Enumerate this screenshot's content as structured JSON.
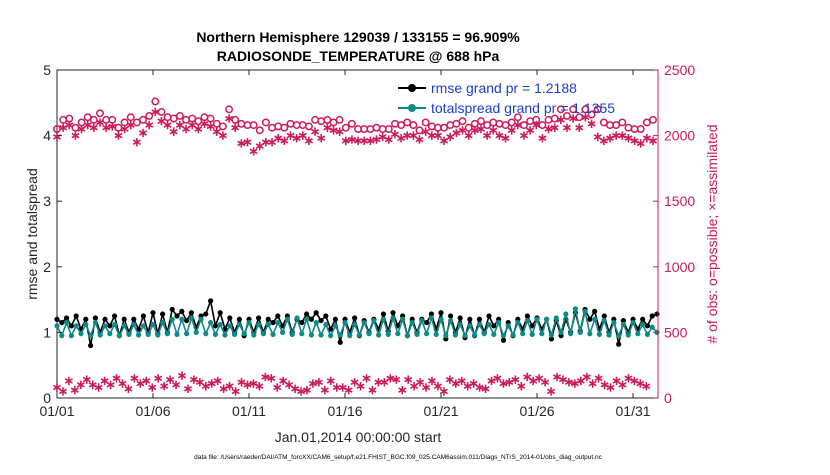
{
  "chart_data": {
    "type": "line",
    "title_line1": "Northern Hemisphere 129039 / 133155 = 96.909%",
    "title_line2": "RADIOSONDE_TEMPERATURE @ 688 hPa",
    "xlabel": "Jan.01,2014 00:00:00 start",
    "ylabel_left": "rmse and totalspread",
    "ylabel_right": "# of obs: o=possible; ×=assimilated",
    "footer": "data file: /Users/raeder/DAI/ATM_forcXX/CAM6_setup/f.e21.FHIST_BGC.f09_025.CAM6assim.011/Diags_NTrS_2014-01/obs_diag_output.nc",
    "xlim": [
      1,
      32.3
    ],
    "ylim_left": [
      0,
      5
    ],
    "ylim_right": [
      0,
      2500
    ],
    "x_ticks": [
      1,
      6,
      11,
      16,
      21,
      26,
      31
    ],
    "x_tick_labels": [
      "01/01",
      "01/06",
      "01/11",
      "01/16",
      "01/21",
      "01/26",
      "01/31"
    ],
    "y_ticks_left": [
      0,
      1,
      2,
      3,
      4,
      5
    ],
    "y_tick_labels_left": [
      "0",
      "1",
      "2",
      "3",
      "4",
      "5"
    ],
    "y_ticks_right": [
      0,
      500,
      1000,
      1500,
      2000,
      2500
    ],
    "y_tick_labels_right": [
      "0",
      "500",
      "1000",
      "1500",
      "2000",
      "2500"
    ],
    "legend": {
      "position": "top-right",
      "entries": [
        "rmse grand pr = 1.2188",
        "totalspread grand pr = 1.1355"
      ]
    },
    "colors": {
      "rmse": "#000000",
      "spread": "#0e8a8a",
      "obs": "#cc1a5a",
      "legend_text": "#1a3fd0",
      "axis": "#262626"
    },
    "x_start": 1,
    "x_step": 0.25,
    "series": [
      {
        "name": "rmse",
        "axis": "left",
        "values": [
          1.2,
          1.15,
          1.22,
          1.1,
          1.25,
          1.05,
          1.2,
          0.8,
          1.22,
          1.0,
          1.2,
          1.1,
          1.25,
          0.95,
          1.2,
          1.0,
          1.2,
          1.05,
          1.25,
          1.0,
          1.3,
          0.98,
          1.28,
          1.0,
          1.35,
          1.25,
          1.32,
          1.18,
          1.3,
          1.08,
          1.25,
          1.28,
          1.48,
          1.1,
          1.3,
          1.05,
          1.22,
          1.0,
          1.2,
          0.95,
          1.2,
          1.0,
          1.22,
          1.0,
          1.2,
          1.15,
          1.25,
          1.1,
          1.25,
          1.0,
          1.2,
          1.15,
          1.28,
          1.2,
          1.3,
          1.18,
          1.25,
          1.05,
          1.2,
          0.85,
          1.2,
          1.0,
          1.22,
          0.95,
          1.18,
          1.0,
          1.2,
          1.05,
          1.28,
          1.02,
          1.3,
          1.1,
          1.25,
          0.95,
          1.2,
          1.0,
          1.2,
          1.15,
          1.28,
          1.05,
          1.3,
          0.9,
          1.25,
          1.0,
          1.22,
          0.92,
          1.2,
          0.95,
          1.2,
          1.0,
          1.25,
          1.1,
          1.2,
          0.88,
          1.15,
          0.95,
          1.2,
          1.05,
          1.25,
          1.1,
          1.22,
          1.05,
          1.2,
          0.9,
          1.18,
          0.95,
          1.2,
          1.0,
          1.3,
          1.02,
          1.35,
          1.2,
          1.32,
          1.05,
          1.25,
          1.0,
          1.2,
          0.82,
          1.18,
          1.0,
          1.2,
          1.05,
          1.2,
          1.1,
          1.25,
          1.28
        ],
        "label": "rmse grand pr = 1.2188"
      },
      {
        "name": "totalspread",
        "axis": "left",
        "values": [
          1.1,
          0.95,
          1.15,
          0.95,
          1.1,
          0.98,
          1.12,
          0.95,
          1.15,
          0.96,
          1.1,
          0.98,
          1.12,
          0.95,
          1.1,
          0.97,
          1.12,
          0.96,
          1.1,
          0.97,
          1.12,
          0.96,
          1.15,
          0.98,
          1.2,
          0.97,
          1.2,
          0.98,
          1.22,
          1.0,
          1.2,
          0.98,
          1.15,
          0.97,
          1.12,
          0.96,
          1.1,
          0.97,
          1.12,
          0.98,
          1.15,
          0.96,
          1.12,
          0.98,
          1.12,
          0.97,
          1.15,
          1.0,
          1.2,
          0.97,
          1.22,
          0.98,
          1.2,
          0.96,
          1.15,
          0.96,
          1.12,
          0.95,
          1.1,
          0.96,
          1.15,
          0.95,
          1.12,
          0.96,
          1.15,
          0.98,
          1.18,
          0.96,
          1.2,
          0.97,
          1.22,
          0.98,
          1.2,
          0.95,
          1.15,
          0.97,
          1.18,
          0.98,
          1.22,
          0.97,
          1.2,
          0.95,
          1.18,
          0.96,
          1.12,
          0.95,
          1.1,
          0.96,
          1.12,
          0.98,
          1.12,
          0.97,
          1.15,
          0.95,
          1.1,
          0.96,
          1.15,
          0.98,
          1.18,
          0.97,
          1.2,
          0.98,
          1.2,
          0.96,
          1.22,
          1.0,
          1.28,
          0.98,
          1.36,
          1.0,
          1.32,
          0.98,
          1.2,
          0.97,
          1.18,
          0.96,
          1.15,
          0.95,
          1.12,
          0.96,
          1.15,
          0.98,
          1.12,
          0.97,
          1.08,
          1.0
        ],
        "label": "totalspread grand pr = 1.1355"
      },
      {
        "name": "obs_possible",
        "axis": "right",
        "marker": "o",
        "values": [
          2050,
          2120,
          2130,
          2060,
          2100,
          2140,
          2120,
          2170,
          2120,
          2120,
          2060,
          2100,
          2140,
          2100,
          2120,
          2150,
          2260,
          2180,
          2140,
          2130,
          2150,
          2120,
          2130,
          2110,
          2140,
          2130,
          2090,
          2070,
          2200,
          2120,
          2090,
          2080,
          2080,
          2040,
          2100,
          2060,
          2070,
          2060,
          2090,
          2080,
          2080,
          2070,
          2120,
          2110,
          2120,
          2100,
          2120,
          2060,
          2090,
          2050,
          2050,
          2050,
          2060,
          2050,
          2050,
          2090,
          2080,
          2100,
          2080,
          2040,
          2100,
          2070,
          2060,
          2060,
          2080,
          2090,
          2110,
          2060,
          2090,
          2110,
          2080,
          2100,
          2090,
          2080,
          2100,
          2140,
          2080,
          2110,
          2120,
          2080,
          2120,
          2130,
          2200,
          2150,
          2200,
          2140,
          2200,
          2160,
          2200,
          2100,
          2080,
          2080,
          2100,
          2060,
          2050,
          2050,
          2100,
          2120
        ],
        "x_start": 1,
        "x_step": 0.32
      },
      {
        "name": "obs_assimilated",
        "axis": "right",
        "marker": "*",
        "values": [
          1990,
          2060,
          2080,
          2000,
          2050,
          2080,
          2060,
          2100,
          2060,
          2070,
          2000,
          2050,
          2080,
          1950,
          2020,
          2080,
          2180,
          2110,
          2080,
          2030,
          2080,
          2050,
          2080,
          2050,
          2090,
          2070,
          2030,
          2000,
          2130,
          2060,
          1940,
          1950,
          1880,
          1920,
          1950,
          1950,
          1980,
          1960,
          2000,
          1980,
          2000,
          1960,
          2030,
          1980,
          2060,
          2040,
          2030,
          1960,
          1970,
          1960,
          1960,
          1960,
          1970,
          1990,
          1970,
          2010,
          1980,
          2000,
          2000,
          1970,
          2030,
          2000,
          2000,
          1960,
          1990,
          2020,
          2040,
          2000,
          2040,
          2050,
          2000,
          2040,
          2000,
          1980,
          2040,
          2080,
          2000,
          2040,
          2080,
          1980,
          2050,
          2060,
          2120,
          2060,
          2130,
          2060,
          2140,
          2090,
          1990,
          1960,
          1980,
          2000,
          2000,
          1980,
          1960,
          1940,
          1980,
          1960
        ],
        "x_start": 1,
        "x_step": 0.32
      },
      {
        "name": "obs_low_assimilated",
        "axis": "right",
        "marker": "*",
        "values": [
          80,
          50,
          130,
          60,
          100,
          140,
          100,
          80,
          130,
          100,
          150,
          110,
          70,
          150,
          110,
          130,
          80,
          150,
          90,
          140,
          100,
          170,
          70,
          140,
          120,
          90,
          110,
          130,
          70,
          90,
          50,
          120,
          100,
          110,
          90,
          160,
          150,
          80,
          130,
          100,
          70,
          50,
          60,
          110,
          120,
          60,
          130,
          80,
          80,
          60,
          120,
          90,
          150,
          60,
          120,
          120,
          150,
          140,
          60,
          140,
          90,
          120,
          80,
          130,
          90,
          50,
          140,
          110,
          130,
          90,
          110,
          80,
          70,
          130,
          150,
          110,
          120,
          140,
          90,
          160,
          130,
          150,
          120,
          50,
          160,
          140,
          120,
          110,
          130,
          160,
          110,
          150,
          100,
          80,
          130,
          100,
          150,
          130,
          110,
          90
        ],
        "x_start": 1,
        "x_step": 0.31
      }
    ]
  }
}
